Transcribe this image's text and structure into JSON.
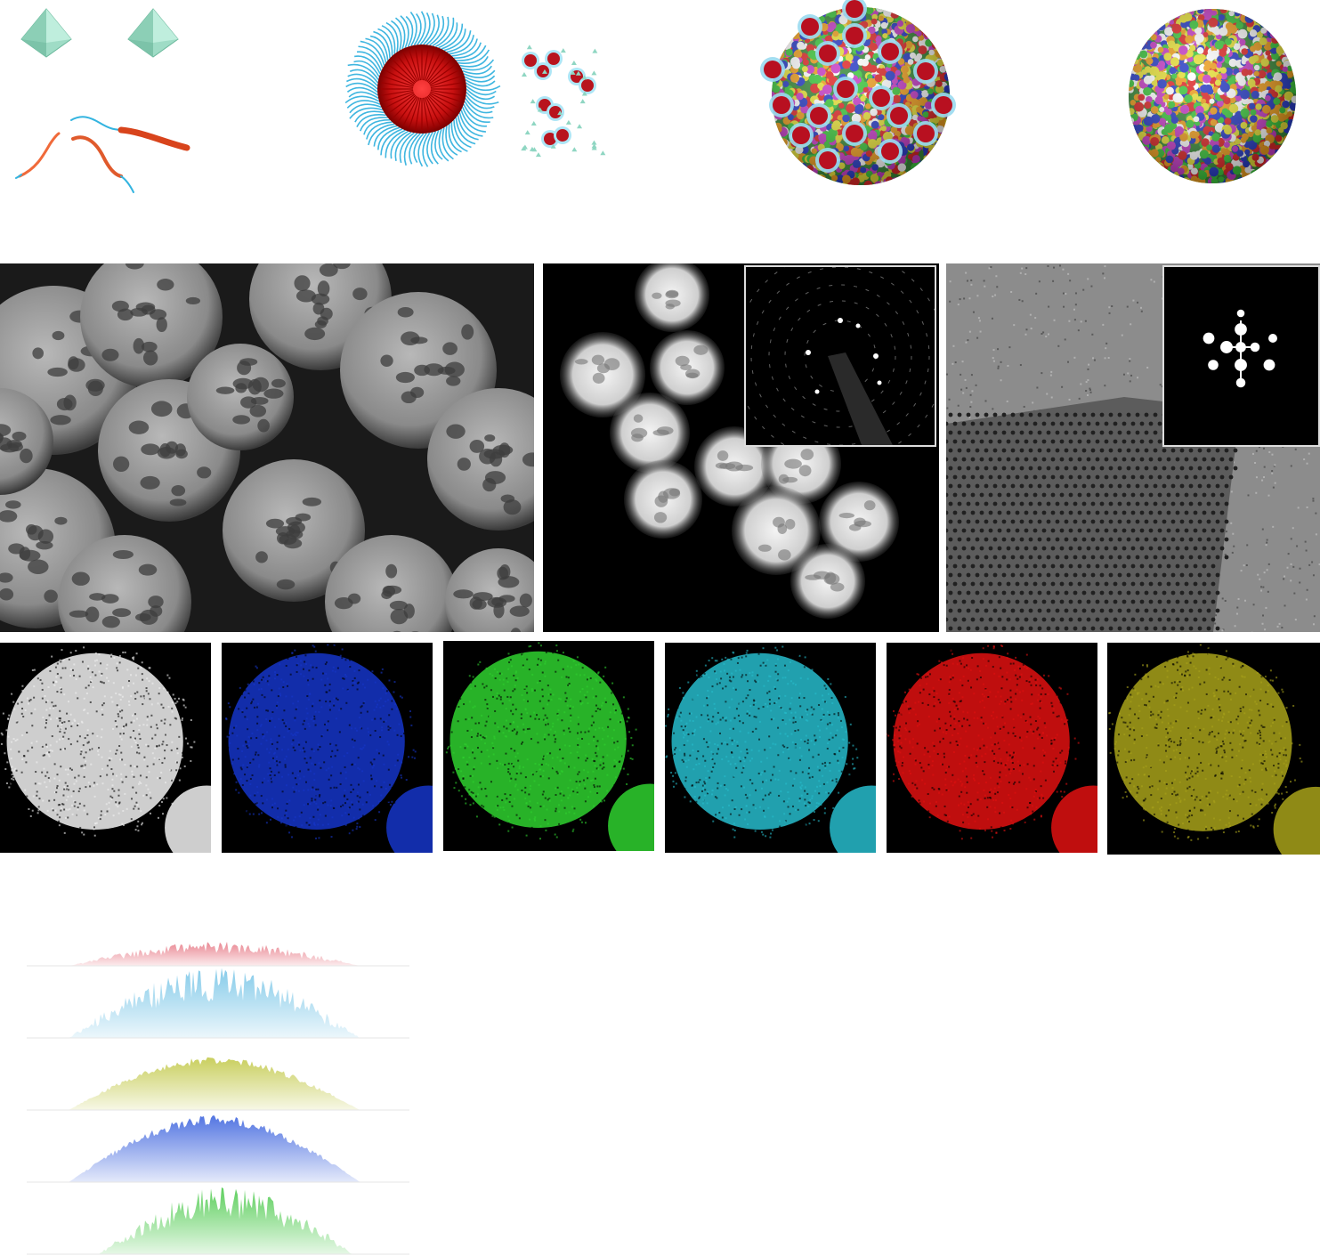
{
  "figure": {
    "schematic": {
      "steps": [
        {
          "name": "precursors",
          "items": [
            "octahedron-crystal",
            "octahedron-crystal",
            "block-copolymer-chain",
            "block-copolymer-chain",
            "block-copolymer-chain"
          ]
        },
        {
          "name": "micelle-assembly",
          "items": [
            "spherical-micelle",
            "small-micelle-clusters"
          ]
        },
        {
          "name": "micelle-templated-sphere",
          "items": [
            "multicolor-atom-sphere-with-micelles"
          ]
        },
        {
          "name": "mesoporous-sphere",
          "items": [
            "multicolor-atom-sphere"
          ]
        }
      ]
    },
    "micrographs": [
      "sem-image",
      "haadf-stem-image-with-saed-inset",
      "hrtem-image-with-fft-inset"
    ],
    "eds_maps": {
      "colors": [
        "#f2f2f2",
        "#1535c8",
        "#2fd12f",
        "#27bccc",
        "#e01010",
        "#a8a21a"
      ]
    },
    "line_profiles": {
      "colors": [
        "#e8808c",
        "#7fc8e8",
        "#c6cc55",
        "#4a6ee0",
        "#55cc55"
      ]
    }
  }
}
